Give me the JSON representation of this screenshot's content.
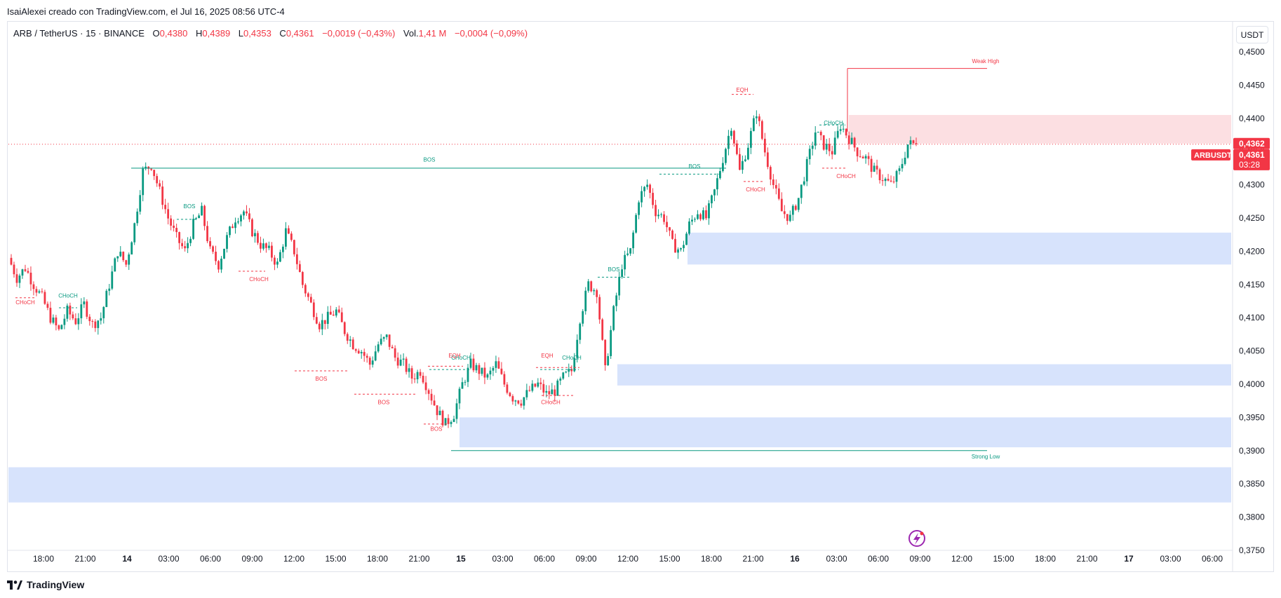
{
  "header": {
    "credit": "IsaiAlexei creado con TradingView.com, el Jul 16, 2025 08:56 UTC-4"
  },
  "legend": {
    "symbol": "ARB / TetherUS · 15 · BINANCE",
    "open_label": "O",
    "open": "0,4380",
    "high_label": "H",
    "high": "0,4389",
    "low_label": "L",
    "low": "0,4353",
    "close_label": "C",
    "close": "0,4361",
    "change": "−0,0019 (−0,43%)",
    "vol_label": "Vol.",
    "vol": "1,41 M",
    "vol_change": "−0,0004 (−0,09%)"
  },
  "currency_button": "USDT",
  "footer": {
    "brand": "TradingView"
  },
  "colors": {
    "up": "#089981",
    "down": "#f23645",
    "zone_demand": "#d7e3fc",
    "zone_supply": "#fcdfe2"
  },
  "chart_data": {
    "type": "candlestick",
    "ylim": [
      0.375,
      0.452
    ],
    "price_ticks": [
      "0,4500",
      "0,4450",
      "0,4400",
      "0,4350",
      "0,4300",
      "0,4250",
      "0,4200",
      "0,4150",
      "0,4100",
      "0,4050",
      "0,4000",
      "0,3950",
      "0,3900",
      "0,3850",
      "0,3800",
      "0,3750"
    ],
    "time_ticks": [
      {
        "label": "18:00",
        "bold": false
      },
      {
        "label": "21:00",
        "bold": false
      },
      {
        "label": "14",
        "bold": true
      },
      {
        "label": "03:00",
        "bold": false
      },
      {
        "label": "06:00",
        "bold": false
      },
      {
        "label": "09:00",
        "bold": false
      },
      {
        "label": "12:00",
        "bold": false
      },
      {
        "label": "15:00",
        "bold": false
      },
      {
        "label": "18:00",
        "bold": false
      },
      {
        "label": "21:00",
        "bold": false
      },
      {
        "label": "15",
        "bold": true
      },
      {
        "label": "03:00",
        "bold": false
      },
      {
        "label": "06:00",
        "bold": false
      },
      {
        "label": "09:00",
        "bold": false
      },
      {
        "label": "12:00",
        "bold": false
      },
      {
        "label": "15:00",
        "bold": false
      },
      {
        "label": "18:00",
        "bold": false
      },
      {
        "label": "21:00",
        "bold": false
      },
      {
        "label": "16",
        "bold": true
      },
      {
        "label": "03:00",
        "bold": false
      },
      {
        "label": "06:00",
        "bold": false
      },
      {
        "label": "09:00",
        "bold": false
      },
      {
        "label": "12:00",
        "bold": false
      },
      {
        "label": "15:00",
        "bold": false
      },
      {
        "label": "18:00",
        "bold": false
      },
      {
        "label": "21:00",
        "bold": false
      },
      {
        "label": "17",
        "bold": true
      },
      {
        "label": "03:00",
        "bold": false
      },
      {
        "label": "06:00",
        "bold": false
      }
    ],
    "path": [
      0.419,
      0.416,
      0.4175,
      0.415,
      0.413,
      0.41,
      0.408,
      0.411,
      0.4095,
      0.412,
      0.409,
      0.41,
      0.415,
      0.42,
      0.418,
      0.424,
      0.432,
      0.433,
      0.429,
      0.425,
      0.422,
      0.42,
      0.424,
      0.426,
      0.42,
      0.418,
      0.422,
      0.425,
      0.426,
      0.423,
      0.421,
      0.42,
      0.418,
      0.423,
      0.42,
      0.415,
      0.412,
      0.409,
      0.41,
      0.411,
      0.408,
      0.406,
      0.405,
      0.403,
      0.406,
      0.407,
      0.404,
      0.403,
      0.401,
      0.402,
      0.399,
      0.396,
      0.394,
      0.3955,
      0.4,
      0.403,
      0.402,
      0.401,
      0.403,
      0.4,
      0.398,
      0.3975,
      0.399,
      0.4,
      0.3985,
      0.399,
      0.401,
      0.402,
      0.41,
      0.415,
      0.414,
      0.402,
      0.411,
      0.418,
      0.42,
      0.428,
      0.43,
      0.426,
      0.425,
      0.421,
      0.42,
      0.424,
      0.426,
      0.425,
      0.429,
      0.434,
      0.439,
      0.432,
      0.436,
      0.441,
      0.435,
      0.43,
      0.426,
      0.425,
      0.428,
      0.433,
      0.438,
      0.436,
      0.435,
      0.439,
      0.437,
      0.435,
      0.434,
      0.432,
      0.431,
      0.43,
      0.432,
      0.4361
    ],
    "current_price": "0,4362",
    "last_price": "0,4361",
    "countdown": "03:28",
    "symbol_tag": "ARBUSDT",
    "zones": [
      {
        "kind": "demand",
        "top": 0.4228,
        "bottom": 0.418
      },
      {
        "kind": "demand",
        "top": 0.403,
        "bottom": 0.3998
      },
      {
        "kind": "demand",
        "top": 0.395,
        "bottom": 0.3905
      },
      {
        "kind": "demand",
        "top": 0.3875,
        "bottom": 0.3822
      },
      {
        "kind": "supply",
        "top": 0.4405,
        "bottom": 0.4362
      }
    ],
    "annotations": [
      {
        "text": "BOS",
        "price": 0.4335,
        "color": "#089981",
        "size": 10
      },
      {
        "text": "BOS",
        "price": 0.4265,
        "color": "#089981",
        "size": 8
      },
      {
        "text": "BOS",
        "price": 0.4325,
        "color": "#089981",
        "size": 8
      },
      {
        "text": "BOS",
        "price": 0.417,
        "color": "#089981",
        "size": 8
      },
      {
        "text": "CHoCH",
        "price": 0.413,
        "color": "#089981",
        "size": 8
      },
      {
        "text": "CHoCH",
        "price": 0.439,
        "color": "#089981",
        "size": 8
      },
      {
        "text": "CHoCH",
        "price": 0.4037,
        "color": "#089981",
        "size": 8
      },
      {
        "text": "CHoCH",
        "price": 0.4037,
        "color": "#089981",
        "size": 8
      },
      {
        "text": "CHoCH",
        "price": 0.412,
        "color": "#f23645",
        "size": 8
      },
      {
        "text": "CHoCH",
        "price": 0.4155,
        "color": "#f23645",
        "size": 8
      },
      {
        "text": "CHoCH",
        "price": 0.429,
        "color": "#f23645",
        "size": 8
      },
      {
        "text": "CHoCH",
        "price": 0.431,
        "color": "#f23645",
        "size": 8
      },
      {
        "text": "CHoCH",
        "price": 0.397,
        "color": "#f23645",
        "size": 8
      },
      {
        "text": "BOS",
        "price": 0.4005,
        "color": "#f23645",
        "size": 8
      },
      {
        "text": "BOS",
        "price": 0.397,
        "color": "#f23645",
        "size": 8
      },
      {
        "text": "BOS",
        "price": 0.393,
        "color": "#f23645",
        "size": 8
      },
      {
        "text": "EQH",
        "price": 0.444,
        "color": "#f23645",
        "size": 8
      },
      {
        "text": "EQH",
        "price": 0.404,
        "color": "#f23645",
        "size": 8
      },
      {
        "text": "EQH",
        "price": 0.404,
        "color": "#f23645",
        "size": 8
      },
      {
        "text": "Weak High",
        "price": 0.4483,
        "color": "#f23645",
        "size": 8
      },
      {
        "text": "Strong Low",
        "price": 0.3888,
        "color": "#089981",
        "size": 8
      }
    ]
  }
}
